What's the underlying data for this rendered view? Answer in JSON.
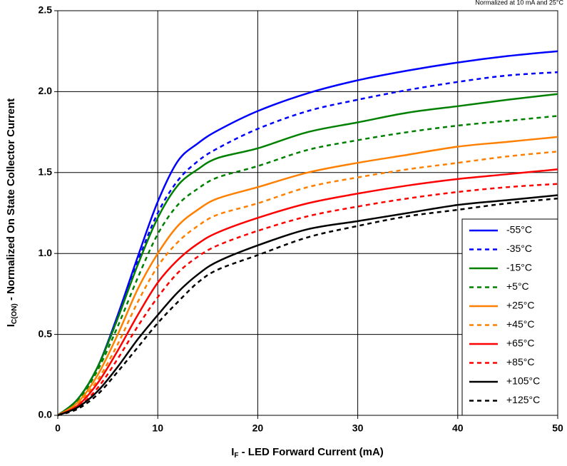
{
  "chart_data": {
    "type": "line",
    "annotation": "Normalized at 10 mA and 25°C",
    "xlabel": {
      "main": "I",
      "sub": "F",
      "rest": " - LED Forward Current (mA)"
    },
    "ylabel": {
      "main": "I",
      "sub": "C(ON)",
      "rest": " - Normalized On State Collector Current"
    },
    "x": [
      0,
      2,
      4,
      6,
      8,
      10,
      12,
      14,
      16,
      20,
      25,
      30,
      35,
      40,
      45,
      50
    ],
    "xlim": [
      0,
      50
    ],
    "xticks": [
      0,
      10,
      20,
      30,
      40,
      50
    ],
    "ylim": [
      0,
      2.5
    ],
    "yticks": [
      {
        "value": 0,
        "label": "0.0"
      },
      {
        "value": 0.5,
        "label": "0.5"
      },
      {
        "value": 1,
        "label": "1.0"
      },
      {
        "value": 1.5,
        "label": "1.5"
      },
      {
        "value": 2,
        "label": "2.0"
      },
      {
        "value": 2.5,
        "label": "2.5"
      }
    ],
    "grid": true,
    "legend": "lower right",
    "series": [
      {
        "name": "-55°C",
        "color": "#0000ff",
        "style": "solid",
        "values": [
          0,
          0.1,
          0.3,
          0.62,
          0.98,
          1.32,
          1.57,
          1.68,
          1.76,
          1.88,
          1.99,
          2.07,
          2.13,
          2.18,
          2.22,
          2.25
        ]
      },
      {
        "name": "-35°C",
        "color": "#0000ff",
        "style": "dashed",
        "values": [
          0,
          0.1,
          0.3,
          0.6,
          0.95,
          1.25,
          1.45,
          1.57,
          1.65,
          1.77,
          1.88,
          1.95,
          2.01,
          2.06,
          2.1,
          2.12
        ]
      },
      {
        "name": "-15°C",
        "color": "#008000",
        "style": "solid",
        "values": [
          0,
          0.1,
          0.3,
          0.6,
          0.93,
          1.22,
          1.42,
          1.52,
          1.59,
          1.65,
          1.75,
          1.81,
          1.87,
          1.91,
          1.95,
          1.985
        ]
      },
      {
        "name": "+5°C",
        "color": "#008000",
        "style": "dashed",
        "values": [
          0,
          0.09,
          0.28,
          0.55,
          0.85,
          1.12,
          1.3,
          1.4,
          1.47,
          1.54,
          1.64,
          1.7,
          1.75,
          1.79,
          1.82,
          1.85
        ]
      },
      {
        "name": "+25°C",
        "color": "#ff8000",
        "style": "solid",
        "values": [
          0,
          0.08,
          0.25,
          0.5,
          0.78,
          1.0,
          1.17,
          1.27,
          1.34,
          1.41,
          1.5,
          1.56,
          1.61,
          1.66,
          1.69,
          1.72
        ]
      },
      {
        "name": "+45°C",
        "color": "#ff8000",
        "style": "dashed",
        "values": [
          0,
          0.07,
          0.22,
          0.44,
          0.7,
          0.92,
          1.07,
          1.17,
          1.24,
          1.31,
          1.41,
          1.47,
          1.52,
          1.56,
          1.6,
          1.63
        ]
      },
      {
        "name": "+65°C",
        "color": "#ff0000",
        "style": "solid",
        "values": [
          0,
          0.06,
          0.2,
          0.4,
          0.62,
          0.82,
          0.96,
          1.06,
          1.13,
          1.22,
          1.31,
          1.37,
          1.42,
          1.46,
          1.49,
          1.52
        ]
      },
      {
        "name": "+85°C",
        "color": "#ff0000",
        "style": "dashed",
        "values": [
          0,
          0.05,
          0.17,
          0.35,
          0.55,
          0.73,
          0.88,
          0.98,
          1.05,
          1.14,
          1.23,
          1.29,
          1.34,
          1.38,
          1.41,
          1.43
        ]
      },
      {
        "name": "+105°C",
        "color": "#000000",
        "style": "solid",
        "values": [
          0,
          0.05,
          0.15,
          0.3,
          0.47,
          0.62,
          0.76,
          0.87,
          0.95,
          1.05,
          1.15,
          1.2,
          1.25,
          1.3,
          1.33,
          1.36
        ]
      },
      {
        "name": "+125°C",
        "color": "#000000",
        "style": "dashed",
        "values": [
          0,
          0.04,
          0.13,
          0.27,
          0.42,
          0.57,
          0.7,
          0.82,
          0.9,
          0.99,
          1.1,
          1.17,
          1.23,
          1.27,
          1.31,
          1.34
        ]
      }
    ]
  }
}
